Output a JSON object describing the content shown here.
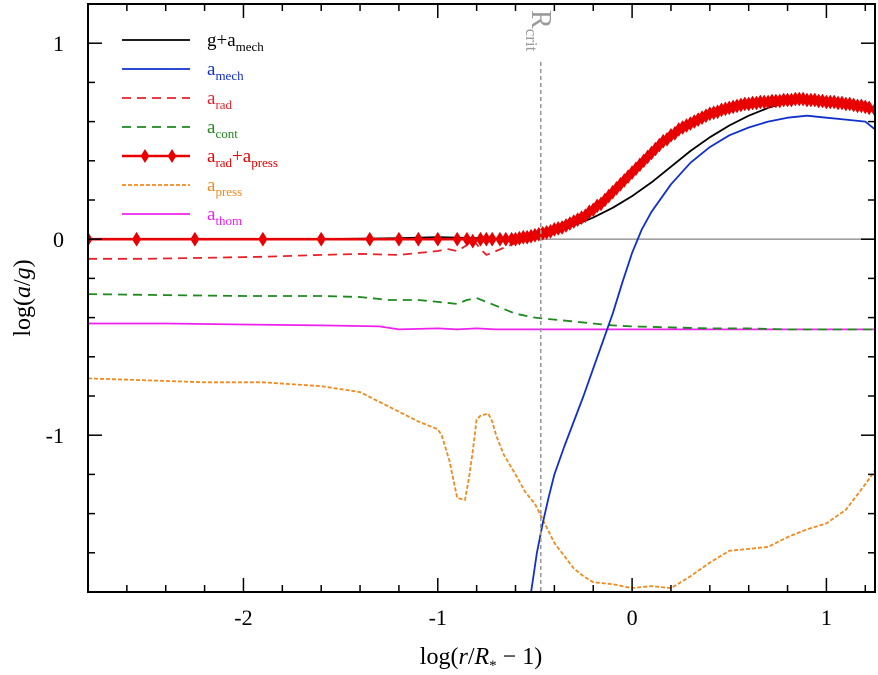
{
  "chart_data": {
    "type": "line",
    "xlabel": "log(r/R* − 1)",
    "ylabel": "log(a/g)",
    "xlim": [
      -2.8,
      1.25
    ],
    "ylim": [
      -1.8,
      1.2
    ],
    "xticks": [
      -2,
      -1,
      0,
      1
    ],
    "xtick_labels": [
      "-2",
      "-1",
      "0",
      "1"
    ],
    "yticks": [
      -1,
      0,
      1
    ],
    "ytick_labels": [
      "-1",
      "0",
      "1"
    ],
    "zero_line": true,
    "grid": false,
    "legend_position": "top-left",
    "annotation": {
      "label": "R",
      "sub": "crit",
      "x": -0.47,
      "color": "#9a9a9a"
    },
    "series": [
      {
        "id": "g_amech",
        "label": "g+a",
        "sub": "mech",
        "color": "#000000",
        "style": "solid",
        "marker": "none",
        "x": [
          -2.8,
          -2.4,
          -2.0,
          -1.6,
          -1.2,
          -1.0,
          -0.8,
          -0.6,
          -0.5,
          -0.4,
          -0.3,
          -0.2,
          -0.1,
          0.0,
          0.1,
          0.2,
          0.3,
          0.4,
          0.5,
          0.6,
          0.7,
          0.8,
          0.9,
          1.0,
          1.1,
          1.2,
          1.25
        ],
        "y": [
          0.0,
          0.0,
          0.0,
          0.0,
          0.005,
          0.01,
          0.005,
          0.0,
          0.02,
          0.04,
          0.07,
          0.11,
          0.16,
          0.22,
          0.29,
          0.37,
          0.45,
          0.52,
          0.58,
          0.63,
          0.67,
          0.7,
          0.71,
          0.7,
          0.69,
          0.67,
          0.66
        ]
      },
      {
        "id": "amech",
        "label": "a",
        "sub": "mech",
        "color": "#1030cc",
        "style": "solid",
        "marker": "none",
        "x": [
          -0.52,
          -0.49,
          -0.46,
          -0.43,
          -0.4,
          -0.35,
          -0.3,
          -0.25,
          -0.2,
          -0.15,
          -0.1,
          -0.05,
          0.0,
          0.05,
          0.1,
          0.2,
          0.3,
          0.4,
          0.5,
          0.6,
          0.7,
          0.8,
          0.9,
          1.0,
          1.1,
          1.2,
          1.25
        ],
        "y": [
          -1.8,
          -1.6,
          -1.45,
          -1.32,
          -1.2,
          -1.06,
          -0.93,
          -0.8,
          -0.66,
          -0.52,
          -0.38,
          -0.22,
          -0.07,
          0.05,
          0.14,
          0.28,
          0.39,
          0.47,
          0.53,
          0.57,
          0.6,
          0.62,
          0.63,
          0.62,
          0.61,
          0.6,
          0.56
        ]
      },
      {
        "id": "arad",
        "label": "a",
        "sub": "rad",
        "color": "#e8202a",
        "style": "dashed",
        "marker": "none",
        "x": [
          -2.8,
          -2.5,
          -2.2,
          -1.9,
          -1.6,
          -1.4,
          -1.2,
          -1.0,
          -0.95,
          -0.9,
          -0.85,
          -0.82,
          -0.78,
          -0.75,
          -0.7,
          -0.65,
          -0.6,
          -0.55,
          -0.5
        ],
        "y": [
          -0.1,
          -0.1,
          -0.095,
          -0.09,
          -0.08,
          -0.075,
          -0.08,
          -0.06,
          -0.05,
          -0.06,
          -0.03,
          0.0,
          -0.05,
          -0.08,
          -0.06,
          -0.04,
          -0.02,
          0.0,
          0.01
        ]
      },
      {
        "id": "acont",
        "label": "a",
        "sub": "cont",
        "color": "#1e8a1e",
        "style": "dashed",
        "marker": "none",
        "x": [
          -2.8,
          -2.4,
          -2.0,
          -1.6,
          -1.4,
          -1.25,
          -1.1,
          -1.0,
          -0.9,
          -0.85,
          -0.8,
          -0.75,
          -0.7,
          -0.65,
          -0.6,
          -0.5,
          -0.4,
          -0.3,
          -0.2,
          -0.1,
          0.0,
          0.2,
          0.4,
          0.6,
          0.8,
          1.0,
          1.2,
          1.25
        ],
        "y": [
          -0.28,
          -0.285,
          -0.29,
          -0.29,
          -0.295,
          -0.31,
          -0.31,
          -0.32,
          -0.33,
          -0.31,
          -0.3,
          -0.32,
          -0.34,
          -0.36,
          -0.38,
          -0.4,
          -0.41,
          -0.42,
          -0.43,
          -0.44,
          -0.445,
          -0.45,
          -0.455,
          -0.455,
          -0.46,
          -0.46,
          -0.46,
          -0.46
        ]
      },
      {
        "id": "arad_apress",
        "label": "a",
        "sub": "rad",
        "label2": "+a",
        "sub2": "press",
        "color": "#e80000",
        "style": "solid",
        "marker": "diamond",
        "x": [
          -2.8,
          -2.55,
          -2.25,
          -1.9,
          -1.6,
          -1.35,
          -1.2,
          -1.1,
          -1.0,
          -0.9,
          -0.85,
          -0.82,
          -0.78,
          -0.75,
          -0.72,
          -0.68,
          -0.65,
          -0.62,
          -0.6,
          -0.58,
          -0.56,
          -0.54,
          -0.52,
          -0.5,
          -0.48,
          -0.46,
          -0.44,
          -0.42,
          -0.4,
          -0.38,
          -0.36,
          -0.34,
          -0.32,
          -0.3,
          -0.28,
          -0.26,
          -0.24,
          -0.22,
          -0.2,
          -0.18,
          -0.16,
          -0.14,
          -0.12,
          -0.1,
          -0.08,
          -0.06,
          -0.04,
          -0.02,
          0.0,
          0.02,
          0.04,
          0.06,
          0.08,
          0.1,
          0.12,
          0.14,
          0.16,
          0.18,
          0.2,
          0.22,
          0.24,
          0.26,
          0.28,
          0.3,
          0.32,
          0.34,
          0.36,
          0.38,
          0.4,
          0.42,
          0.44,
          0.46,
          0.48,
          0.5,
          0.52,
          0.54,
          0.56,
          0.58,
          0.6,
          0.62,
          0.64,
          0.66,
          0.68,
          0.7,
          0.72,
          0.74,
          0.76,
          0.78,
          0.8,
          0.82,
          0.84,
          0.86,
          0.88,
          0.9,
          0.92,
          0.94,
          0.96,
          0.98,
          1.0,
          1.02,
          1.04,
          1.06,
          1.08,
          1.1,
          1.12,
          1.14,
          1.16,
          1.18,
          1.2,
          1.22,
          1.25
        ],
        "y": [
          0.0,
          0.0,
          0.0,
          0.0,
          0.0,
          0.0,
          0.0,
          0.0,
          0.0,
          0.0,
          0.0,
          -0.01,
          0.0,
          0.0,
          0.0,
          0.0,
          0.0,
          0.0,
          0.0,
          0.005,
          0.01,
          0.01,
          0.015,
          0.02,
          0.025,
          0.03,
          0.035,
          0.04,
          0.05,
          0.055,
          0.06,
          0.07,
          0.08,
          0.09,
          0.1,
          0.11,
          0.12,
          0.14,
          0.15,
          0.17,
          0.18,
          0.2,
          0.22,
          0.24,
          0.26,
          0.28,
          0.3,
          0.32,
          0.34,
          0.36,
          0.38,
          0.4,
          0.42,
          0.44,
          0.46,
          0.48,
          0.5,
          0.51,
          0.53,
          0.54,
          0.56,
          0.57,
          0.58,
          0.59,
          0.6,
          0.61,
          0.62,
          0.63,
          0.64,
          0.645,
          0.65,
          0.66,
          0.665,
          0.67,
          0.675,
          0.68,
          0.685,
          0.69,
          0.69,
          0.695,
          0.695,
          0.7,
          0.7,
          0.7,
          0.705,
          0.705,
          0.705,
          0.71,
          0.71,
          0.71,
          0.715,
          0.715,
          0.715,
          0.71,
          0.71,
          0.71,
          0.705,
          0.705,
          0.7,
          0.7,
          0.7,
          0.695,
          0.695,
          0.69,
          0.69,
          0.685,
          0.68,
          0.68,
          0.675,
          0.67,
          0.66
        ]
      },
      {
        "id": "apress",
        "label": "a",
        "sub": "press",
        "color": "#f08a1c",
        "style": "dotted",
        "marker": "none",
        "x": [
          -2.8,
          -2.5,
          -2.2,
          -1.9,
          -1.6,
          -1.4,
          -1.2,
          -1.1,
          -1.0,
          -0.98,
          -0.94,
          -0.9,
          -0.86,
          -0.84,
          -0.82,
          -0.8,
          -0.78,
          -0.74,
          -0.72,
          -0.7,
          -0.66,
          -0.6,
          -0.55,
          -0.5,
          -0.45,
          -0.4,
          -0.3,
          -0.25,
          -0.2,
          -0.1,
          0.0,
          0.1,
          0.2,
          0.3,
          0.4,
          0.5,
          0.6,
          0.7,
          0.8,
          0.9,
          1.0,
          1.1,
          1.2,
          1.25
        ],
        "y": [
          -0.71,
          -0.72,
          -0.73,
          -0.73,
          -0.75,
          -0.78,
          -0.88,
          -0.93,
          -0.97,
          -1.0,
          -1.13,
          -1.32,
          -1.33,
          -1.22,
          -1.08,
          -0.92,
          -0.9,
          -0.89,
          -0.93,
          -1.0,
          -1.1,
          -1.2,
          -1.29,
          -1.35,
          -1.45,
          -1.55,
          -1.68,
          -1.72,
          -1.75,
          -1.76,
          -1.78,
          -1.77,
          -1.78,
          -1.72,
          -1.65,
          -1.59,
          -1.58,
          -1.57,
          -1.52,
          -1.48,
          -1.45,
          -1.38,
          -1.25,
          -1.18
        ]
      },
      {
        "id": "athom",
        "label": "a",
        "sub": "thom",
        "color": "#ee22ee",
        "style": "solid",
        "marker": "none",
        "x": [
          -2.8,
          -2.4,
          -2.0,
          -1.6,
          -1.3,
          -1.2,
          -1.0,
          -0.9,
          -0.8,
          -0.7,
          -0.5,
          -0.2,
          0.0,
          0.5,
          1.0,
          1.25
        ],
        "y": [
          -0.43,
          -0.43,
          -0.435,
          -0.44,
          -0.445,
          -0.46,
          -0.455,
          -0.46,
          -0.455,
          -0.46,
          -0.46,
          -0.46,
          -0.46,
          -0.46,
          -0.46,
          -0.46
        ]
      }
    ]
  }
}
